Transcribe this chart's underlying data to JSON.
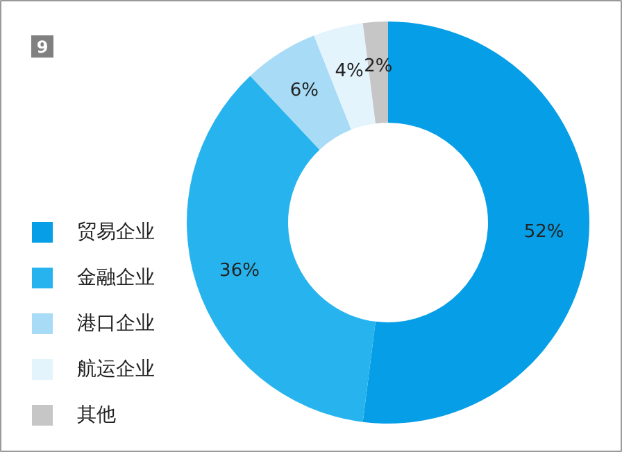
{
  "chart_data": {
    "type": "donut",
    "categories": [
      "贸易企业",
      "金融企业",
      "港口企业",
      "航运企业",
      "其他"
    ],
    "values": [
      52,
      36,
      6,
      4,
      2
    ],
    "colors": [
      "#069ee6",
      "#27b4ee",
      "#a8dbf5",
      "#e4f4fc",
      "#c6c6c6"
    ],
    "value_labels": [
      "52%",
      "36%",
      "6%",
      "4%",
      "2%"
    ],
    "annotations": [
      "9"
    ],
    "legend": "left"
  }
}
